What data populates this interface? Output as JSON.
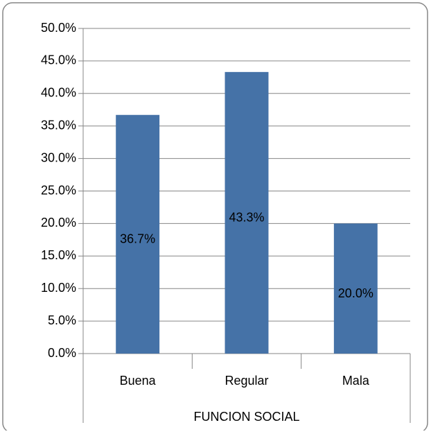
{
  "chart_data": {
    "type": "bar",
    "categories": [
      "Buena",
      "Regular",
      "Mala"
    ],
    "values": [
      36.7,
      43.3,
      20.0
    ],
    "value_labels": [
      "36.7%",
      "43.3%",
      "20.0%"
    ],
    "color": "#4572a7",
    "x_label": "FUNCION SOCIAL",
    "ylim": [
      0,
      50
    ],
    "yticks": [
      {
        "value": 0,
        "label": "0.0%"
      },
      {
        "value": 5,
        "label": "5.0%"
      },
      {
        "value": 10,
        "label": "10.0%"
      },
      {
        "value": 15,
        "label": "15.0%"
      },
      {
        "value": 20,
        "label": "20.0%"
      },
      {
        "value": 25,
        "label": "25.0%"
      },
      {
        "value": 30,
        "label": "30.0%"
      },
      {
        "value": 35,
        "label": "35.0%"
      },
      {
        "value": 40,
        "label": "40.0%"
      },
      {
        "value": 45,
        "label": "45.0%"
      },
      {
        "value": 50,
        "label": "50.0%"
      }
    ],
    "grid": true
  }
}
